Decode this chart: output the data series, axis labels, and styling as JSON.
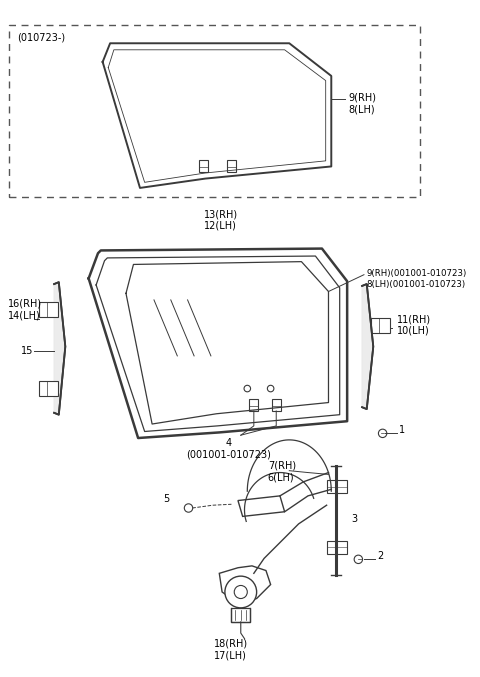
{
  "bg_color": "#ffffff",
  "line_color": "#3a3a3a",
  "text_color": "#000000",
  "figsize": [
    4.8,
    6.77
  ],
  "dpi": 100,
  "labels": {
    "dashed_box_label": "(010723-)",
    "glass_top_label": "9(RH)\n8(LH)",
    "center_label": "13(RH)\n12(LH)",
    "glass_main_label": "9(RH)(001001-010723)\n8(LH)(001001-010723)",
    "part4_label": "4\n(001001-010723)",
    "part1_label": "1",
    "part2_label": "2",
    "part3_label": "3",
    "part5_label": "5",
    "part67_label": "7(RH)\n6(LH)",
    "part1011_label": "11(RH)\n10(LH)",
    "part1416_label": "16(RH)\n14(LH)",
    "part15_label": "15",
    "part1718_label": "18(RH)\n17(LH)"
  }
}
